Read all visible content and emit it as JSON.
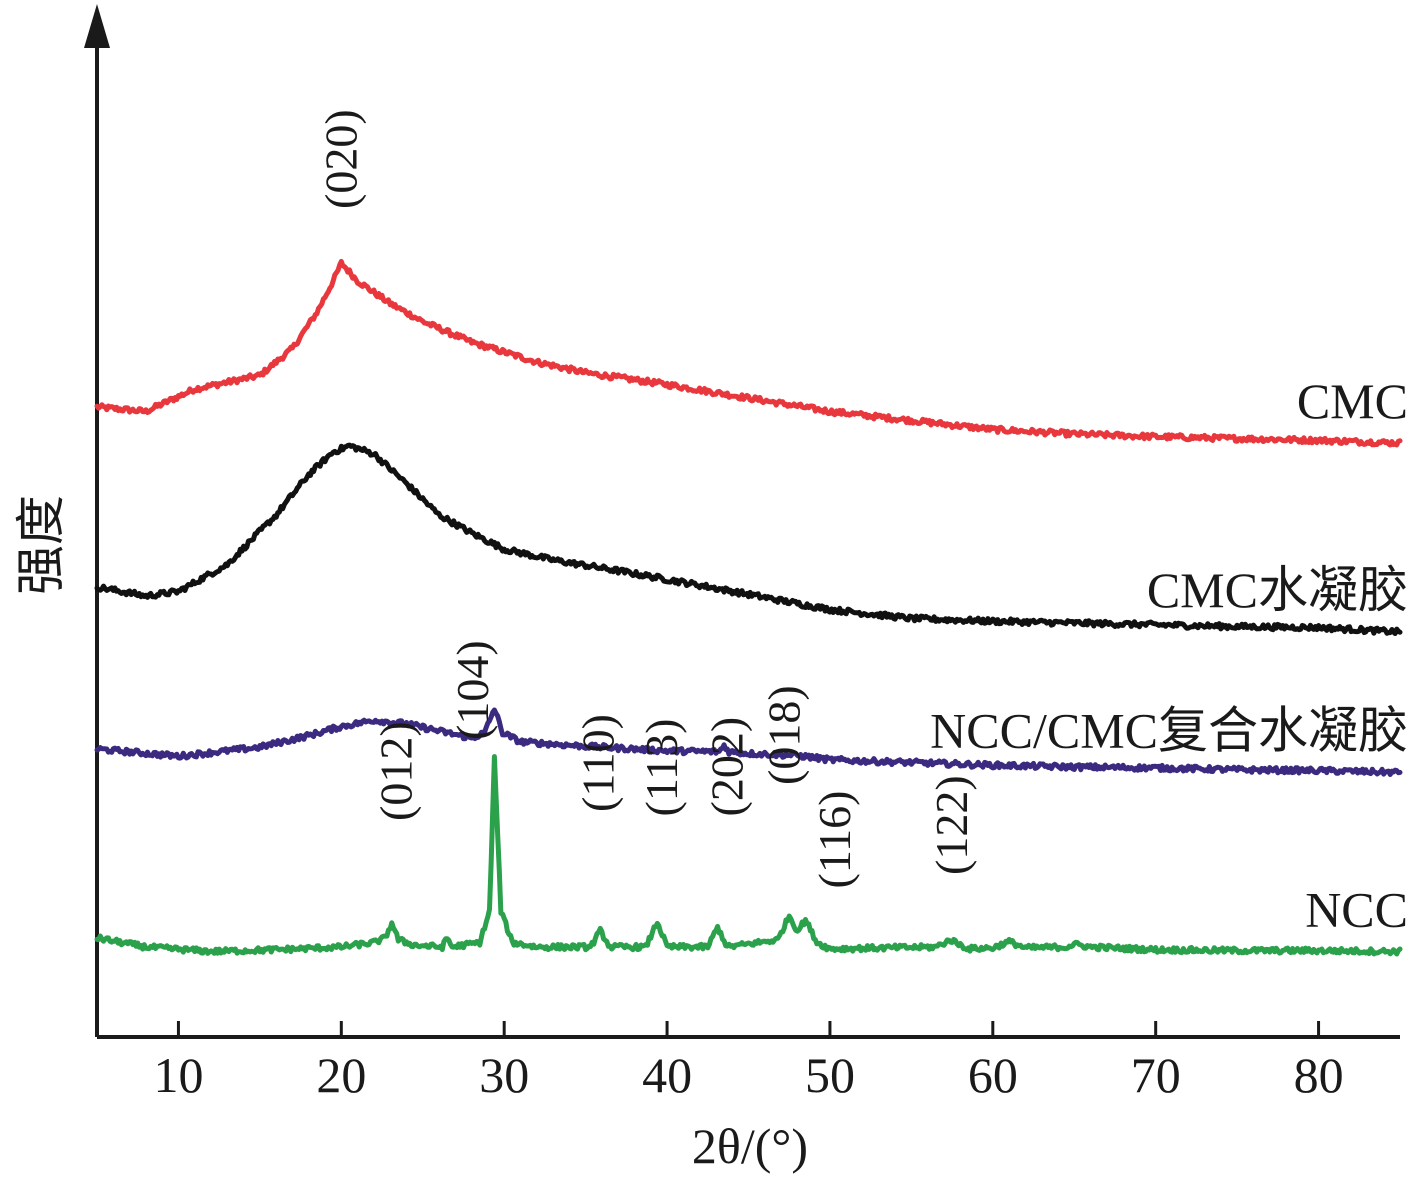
{
  "chart_data": {
    "type": "line",
    "title": "",
    "xlabel": "2θ/(°)",
    "ylabel": "强度",
    "xlim": [
      5,
      85
    ],
    "xticks": [
      10,
      20,
      30,
      40,
      50,
      60,
      70,
      80
    ],
    "y_ticks_shown": false,
    "grid": false,
    "legend": "series names written at right end of each curve",
    "series": [
      {
        "name": "CMC",
        "color": "#e8383d",
        "offset": 700,
        "points": [
          [
            5,
            0
          ],
          [
            8,
            -5
          ],
          [
            11,
            20
          ],
          [
            15,
            35
          ],
          [
            17,
            65
          ],
          [
            18.5,
            105
          ],
          [
            19.5,
            140
          ],
          [
            20,
            160
          ],
          [
            21,
            140
          ],
          [
            23,
            115
          ],
          [
            25,
            95
          ],
          [
            28,
            72
          ],
          [
            32,
            50
          ],
          [
            35,
            38
          ],
          [
            40,
            25
          ],
          [
            45,
            10
          ],
          [
            50,
            -5
          ],
          [
            55,
            -15
          ],
          [
            60,
            -25
          ],
          [
            65,
            -30
          ],
          [
            70,
            -33
          ],
          [
            75,
            -35
          ],
          [
            80,
            -37
          ],
          [
            85,
            -40
          ]
        ]
      },
      {
        "name": "CMC水凝胶",
        "color": "#111111",
        "offset": 500,
        "points": [
          [
            5,
            0
          ],
          [
            8,
            -10
          ],
          [
            10,
            -5
          ],
          [
            13,
            25
          ],
          [
            16,
            80
          ],
          [
            18,
            125
          ],
          [
            19.5,
            150
          ],
          [
            20.5,
            157
          ],
          [
            22,
            148
          ],
          [
            24,
            115
          ],
          [
            26,
            80
          ],
          [
            28,
            60
          ],
          [
            30,
            42
          ],
          [
            33,
            30
          ],
          [
            37,
            18
          ],
          [
            42,
            2
          ],
          [
            47,
            -15
          ],
          [
            50,
            -25
          ],
          [
            55,
            -35
          ],
          [
            60,
            -38
          ],
          [
            65,
            -40
          ],
          [
            70,
            -42
          ],
          [
            75,
            -44
          ],
          [
            80,
            -45
          ],
          [
            85,
            -50
          ]
        ]
      },
      {
        "name": "NCC/CMC复合水凝胶",
        "color": "#3b2a80",
        "offset": 320,
        "points": [
          [
            5,
            0
          ],
          [
            10,
            -8
          ],
          [
            15,
            2
          ],
          [
            18,
            15
          ],
          [
            20,
            25
          ],
          [
            22,
            32
          ],
          [
            24,
            28
          ],
          [
            26,
            20
          ],
          [
            28,
            12
          ],
          [
            28.8,
            18
          ],
          [
            29.4,
            45
          ],
          [
            29.9,
            18
          ],
          [
            31,
            8
          ],
          [
            35,
            3
          ],
          [
            40,
            -2
          ],
          [
            43.2,
            -3
          ],
          [
            43.5,
            4
          ],
          [
            43.8,
            -3
          ],
          [
            45,
            -5
          ],
          [
            48,
            -7
          ],
          [
            50,
            -12
          ],
          [
            55,
            -15
          ],
          [
            60,
            -18
          ],
          [
            65,
            -20
          ],
          [
            70,
            -21
          ],
          [
            75,
            -23
          ],
          [
            80,
            -24
          ],
          [
            85,
            -26
          ]
        ]
      },
      {
        "name": "NCC",
        "color": "#2aa14a",
        "offset": 100,
        "points": [
          [
            5,
            10
          ],
          [
            8,
            0
          ],
          [
            12,
            -5
          ],
          [
            16,
            -3
          ],
          [
            20,
            0
          ],
          [
            22,
            5
          ],
          [
            22.7,
            10
          ],
          [
            23.1,
            27
          ],
          [
            23.5,
            8
          ],
          [
            24.5,
            2
          ],
          [
            26.2,
            0
          ],
          [
            26.5,
            10
          ],
          [
            26.8,
            0
          ],
          [
            28.5,
            5
          ],
          [
            29.1,
            40
          ],
          [
            29.4,
            210
          ],
          [
            29.8,
            40
          ],
          [
            30.5,
            5
          ],
          [
            32,
            0
          ],
          [
            35.3,
            0
          ],
          [
            35.9,
            18
          ],
          [
            36.5,
            0
          ],
          [
            38.7,
            0
          ],
          [
            39.4,
            28
          ],
          [
            40,
            0
          ],
          [
            42.5,
            0
          ],
          [
            43.1,
            22
          ],
          [
            43.7,
            0
          ],
          [
            46.8,
            8
          ],
          [
            47.5,
            35
          ],
          [
            48,
            18
          ],
          [
            48.5,
            30
          ],
          [
            49.2,
            5
          ],
          [
            50,
            -2
          ],
          [
            56.5,
            0
          ],
          [
            57.4,
            8
          ],
          [
            58.5,
            -2
          ],
          [
            60,
            -1
          ],
          [
            61,
            6
          ],
          [
            62,
            -1
          ],
          [
            64.5,
            0
          ],
          [
            65,
            3
          ],
          [
            66,
            0
          ],
          [
            70,
            -3
          ],
          [
            75,
            -4
          ],
          [
            80,
            -4
          ],
          [
            85,
            -5
          ]
        ]
      }
    ],
    "peak_labels": [
      {
        "text": "(020)",
        "x": 20,
        "y": 920
      },
      {
        "text": "(012)",
        "x": 23.4,
        "y": 240
      },
      {
        "text": "(104)",
        "x": 28.1,
        "y": 330
      },
      {
        "text": "(110)",
        "x": 35.8,
        "y": 250
      },
      {
        "text": "(113)",
        "x": 39.7,
        "y": 245
      },
      {
        "text": "(202)",
        "x": 43.7,
        "y": 245
      },
      {
        "text": "(018)",
        "x": 47.2,
        "y": 280
      },
      {
        "text": "(116)",
        "x": 50.3,
        "y": 165
      },
      {
        "text": "(122)",
        "x": 57.5,
        "y": 180
      }
    ]
  }
}
